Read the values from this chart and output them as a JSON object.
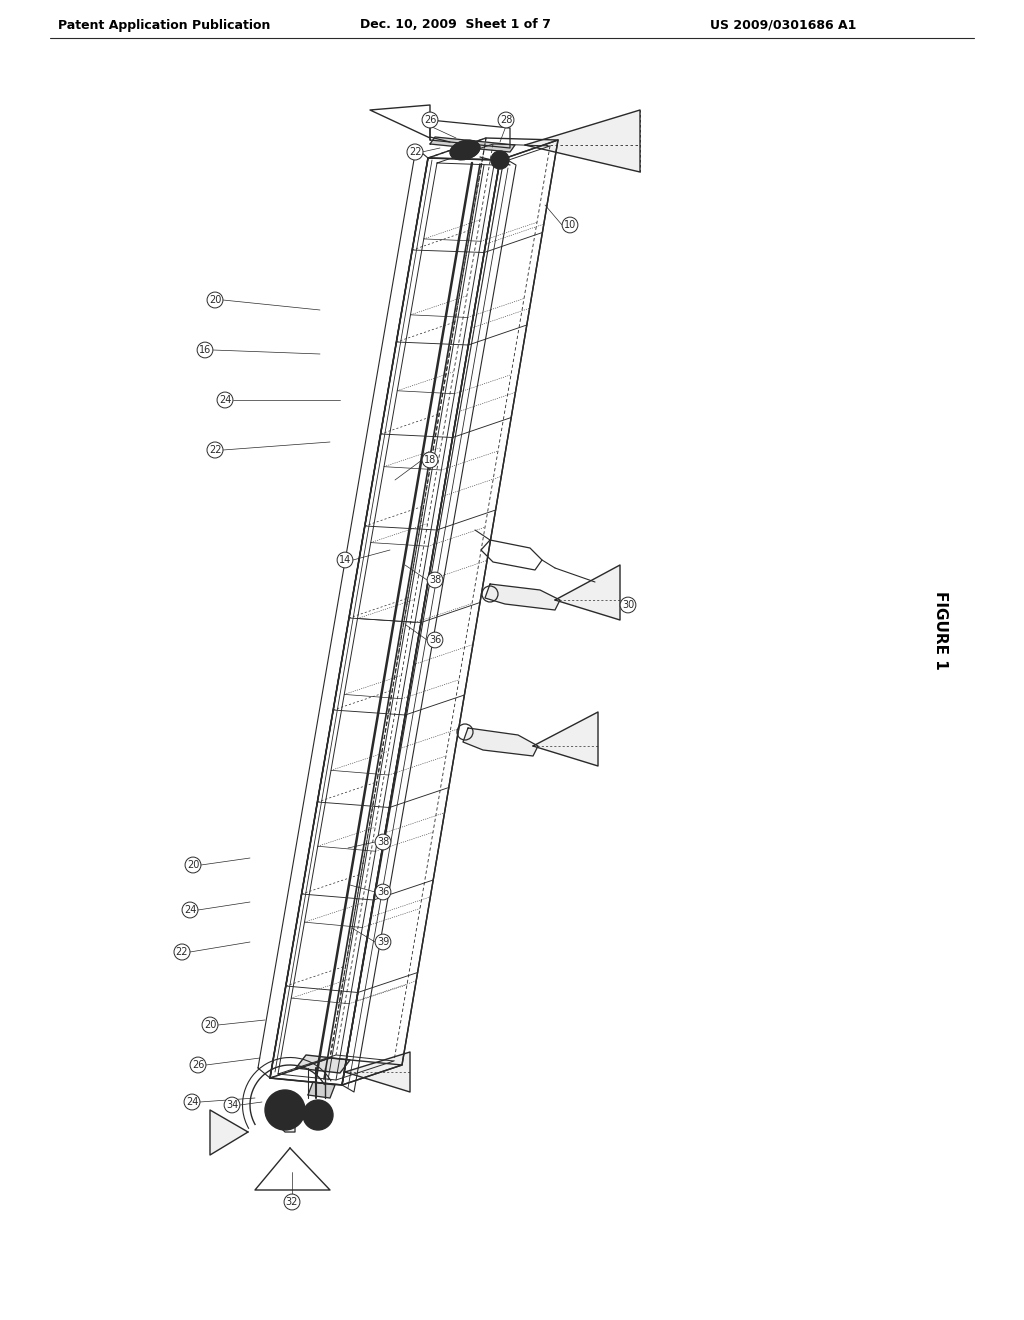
{
  "title_left": "Patent Application Publication",
  "title_mid": "Dec. 10, 2009  Sheet 1 of 7",
  "title_right": "US 2009/0301686 A1",
  "figure_label": "FIGURE 1",
  "bg_color": "#ffffff",
  "line_color": "#2a2a2a",
  "header_fontsize": 9,
  "figure_fontsize": 11,
  "label_fontsize": 7
}
